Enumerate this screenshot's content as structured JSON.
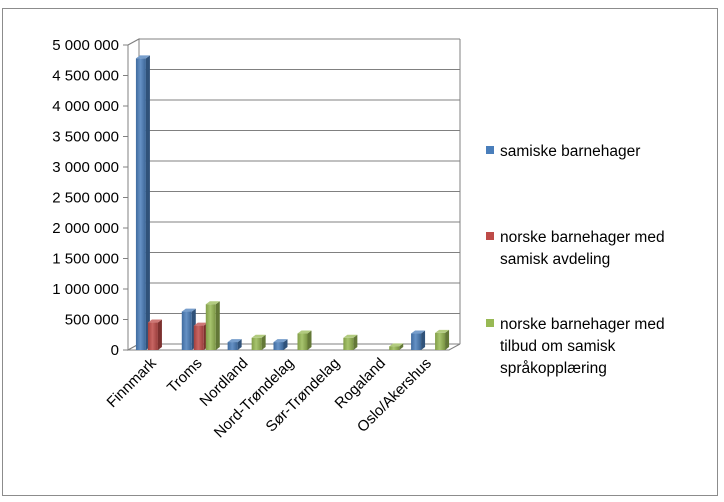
{
  "chart_data": {
    "type": "bar",
    "title": "",
    "xlabel": "",
    "ylabel": "",
    "ylim": [
      0,
      5000000
    ],
    "yticks": [
      0,
      500000,
      1000000,
      1500000,
      2000000,
      2500000,
      3000000,
      3500000,
      4000000,
      4500000,
      5000000
    ],
    "ytick_labels": [
      "0",
      "500 000",
      "1 000 000",
      "1 500 000",
      "2 000 000",
      "2 500 000",
      "3 000 000",
      "3 500 000",
      "4 000 000",
      "4 500 000",
      "5 000 000"
    ],
    "categories": [
      "Finnmark",
      "Troms",
      "Nordland",
      "Nord-Trøndelag",
      "Sør-Trøndelag",
      "Rogaland",
      "Oslo/Akershus"
    ],
    "series": [
      {
        "name": "samiske barnehager",
        "color": "#4a7ebb",
        "values": [
          4780000,
          630000,
          130000,
          130000,
          0,
          0,
          270000
        ]
      },
      {
        "name": "norske barnehager med samisk avdeling",
        "color": "#be4b48",
        "values": [
          450000,
          400000,
          0,
          0,
          0,
          0,
          0
        ]
      },
      {
        "name": "norske barnehager med tilbud om samisk språkopplæring",
        "color": "#98b954",
        "values": [
          0,
          750000,
          200000,
          270000,
          200000,
          60000,
          280000
        ]
      }
    ],
    "legend_position": "right",
    "grid": true,
    "style": "3d-clustered-column"
  }
}
